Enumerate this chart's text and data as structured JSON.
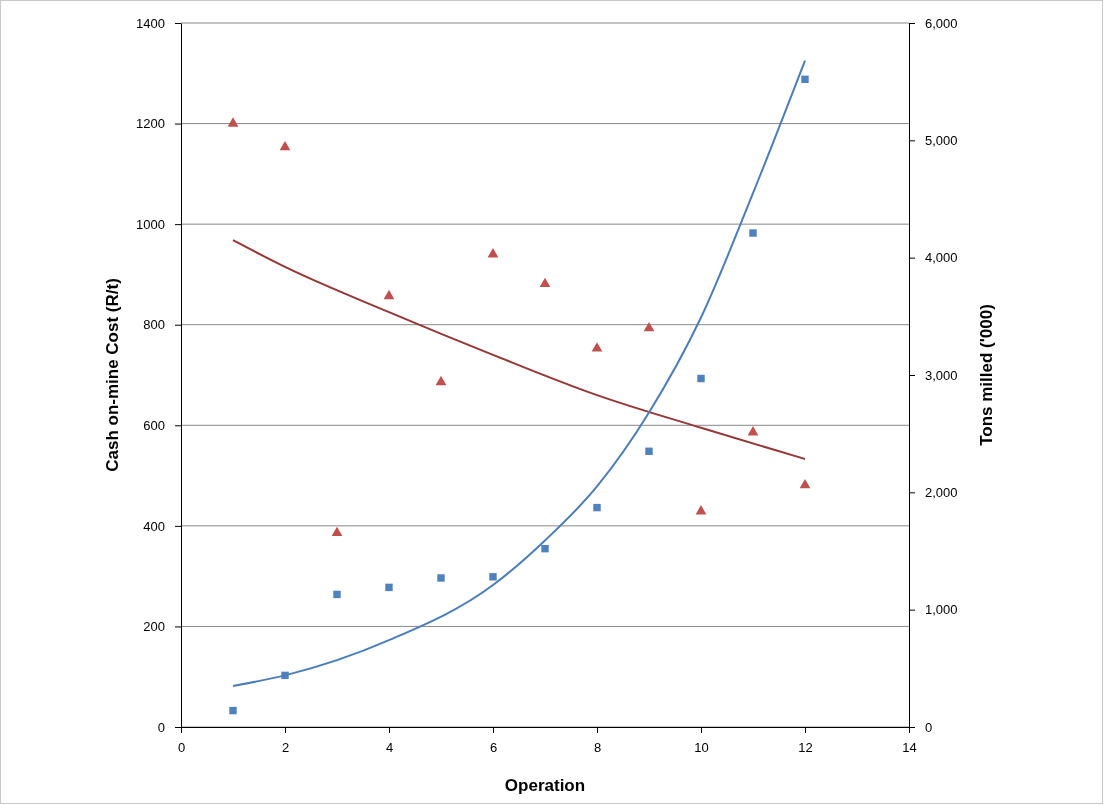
{
  "chart_data": {
    "type": "scatter",
    "xlabel": "Operation",
    "ylabel": "Cash on-mine Cost (R/t)",
    "y2label": "Tons milled ('000)",
    "xlim": [
      0,
      14
    ],
    "xticks": [
      0,
      2,
      4,
      6,
      8,
      10,
      12,
      14
    ],
    "ylim": [
      0,
      1400
    ],
    "yticks": [
      0,
      200,
      400,
      600,
      800,
      1000,
      1200,
      1400
    ],
    "y2lim": [
      0,
      6000
    ],
    "y2ticks": [
      {
        "value": 0,
        "label": "0"
      },
      {
        "value": 1000,
        "label": "1,000"
      },
      {
        "value": 2000,
        "label": "2,000"
      },
      {
        "value": 3000,
        "label": "3,000"
      },
      {
        "value": 4000,
        "label": "4,000"
      },
      {
        "value": 5000,
        "label": "5,000"
      },
      {
        "value": 6000,
        "label": "6,000"
      }
    ],
    "grid": "y",
    "legend": false,
    "series": [
      {
        "type": "scatter",
        "marker": "triangle",
        "color": "#c0504d",
        "x": [
          1,
          2,
          3,
          4,
          5,
          6,
          7,
          8,
          9,
          10,
          11,
          12
        ],
        "values": [
          1200,
          1153,
          386,
          857,
          686,
          940,
          881,
          753,
          793,
          429,
          586,
          481
        ]
      },
      {
        "type": "scatter",
        "marker": "square",
        "axis": "y2",
        "color": "#4f81bd",
        "x": [
          1,
          2,
          3,
          4,
          5,
          6,
          7,
          8,
          9,
          10,
          11,
          12
        ],
        "values": [
          140,
          440,
          1130,
          1190,
          1270,
          1280,
          1520,
          1870,
          2350,
          2970,
          4210,
          5520
        ]
      },
      {
        "type": "line",
        "marker": "none",
        "color": "#953735",
        "x": [
          1,
          2,
          4,
          6,
          8,
          10,
          12
        ],
        "values": [
          968,
          915,
          825,
          740,
          660,
          595,
          533
        ]
      },
      {
        "type": "line",
        "marker": "none",
        "axis": "y2",
        "color": "#4a7ebb",
        "x": [
          1,
          2,
          4,
          6,
          7,
          8,
          9,
          10,
          11,
          12
        ],
        "values": [
          350,
          440,
          740,
          1210,
          1590,
          2050,
          2680,
          3490,
          4550,
          5680
        ]
      }
    ]
  }
}
